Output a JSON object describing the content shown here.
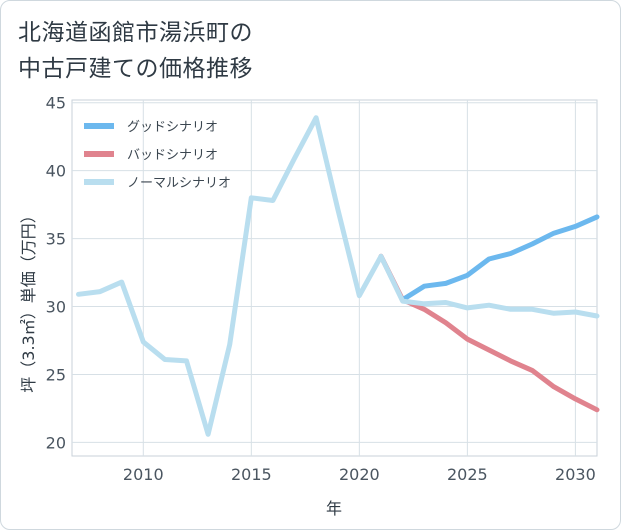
{
  "title": {
    "line1": "北海道函館市湯浜町の",
    "line2": "中古戸建ての価格推移"
  },
  "chart_data": {
    "type": "line",
    "xlabel": "年",
    "ylabel": "坪（3.3㎡）単価（万円）",
    "xlim": [
      2006.7,
      2031
    ],
    "ylim": [
      19,
      45.2
    ],
    "xticks": [
      2010,
      2015,
      2020,
      2025,
      2030
    ],
    "yticks": [
      20,
      25,
      30,
      35,
      40,
      45
    ],
    "grid": true,
    "legend_position": "top-left",
    "series": [
      {
        "name": "グッドシナリオ",
        "color": "#6cb8ee",
        "x": [
          2022,
          2023,
          2024,
          2025,
          2026,
          2027,
          2028,
          2029,
          2030,
          2031
        ],
        "values": [
          30.5,
          31.5,
          31.7,
          32.3,
          33.5,
          33.9,
          34.6,
          35.4,
          35.9,
          36.6
        ]
      },
      {
        "name": "バッドシナリオ",
        "color": "#e0838e",
        "x": [
          2021,
          2022,
          2023,
          2024,
          2025,
          2026,
          2027,
          2028,
          2029,
          2030,
          2031
        ],
        "values": [
          33.7,
          30.5,
          29.8,
          28.8,
          27.6,
          26.8,
          26.0,
          25.3,
          24.1,
          23.2,
          22.4
        ]
      },
      {
        "name": "ノーマルシナリオ",
        "color": "#b9deef",
        "x": [
          2007,
          2008,
          2009,
          2010,
          2011,
          2012,
          2013,
          2014,
          2015,
          2016,
          2017,
          2018,
          2019,
          2020,
          2021,
          2022,
          2023,
          2024,
          2025,
          2026,
          2027,
          2028,
          2029,
          2030,
          2031
        ],
        "values": [
          30.9,
          31.1,
          31.8,
          27.4,
          26.1,
          26.0,
          20.6,
          27.2,
          38.0,
          37.8,
          40.9,
          43.9,
          37.2,
          30.8,
          33.7,
          30.4,
          30.2,
          30.3,
          29.9,
          30.1,
          29.8,
          29.8,
          29.5,
          29.6,
          29.3
        ]
      }
    ]
  }
}
